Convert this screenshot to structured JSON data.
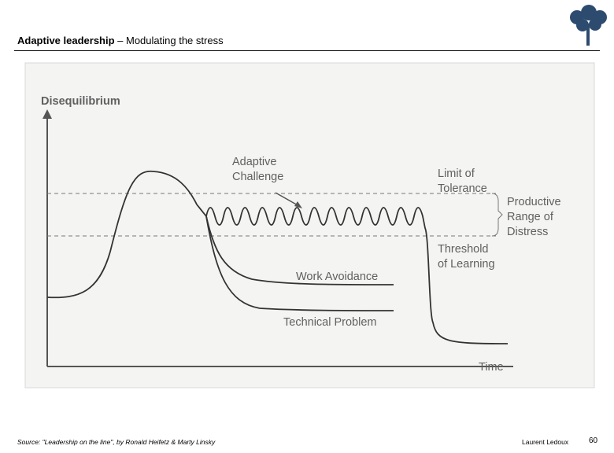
{
  "header": {
    "title_bold": "Adaptive leadership",
    "title_rest": " – Modulating the stress"
  },
  "diagram": {
    "y_axis_label": "Disequilibrium",
    "x_axis_label": "Time",
    "adaptive_challenge": [
      "Adaptive",
      "Challenge"
    ],
    "limit_of_tolerance": [
      "Limit of",
      "Tolerance"
    ],
    "productive_range": [
      "Productive",
      "Range of",
      "Distress"
    ],
    "threshold_of_learning": [
      "Threshold",
      "of Learning"
    ],
    "work_avoidance": "Work Avoidance",
    "technical_problem": "Technical Problem"
  },
  "footer": {
    "source": "Source: \"Leadership  on the line\", by Ronald Heifetz & Marty Linsky",
    "author": "Laurent Ledoux",
    "page": "60"
  }
}
